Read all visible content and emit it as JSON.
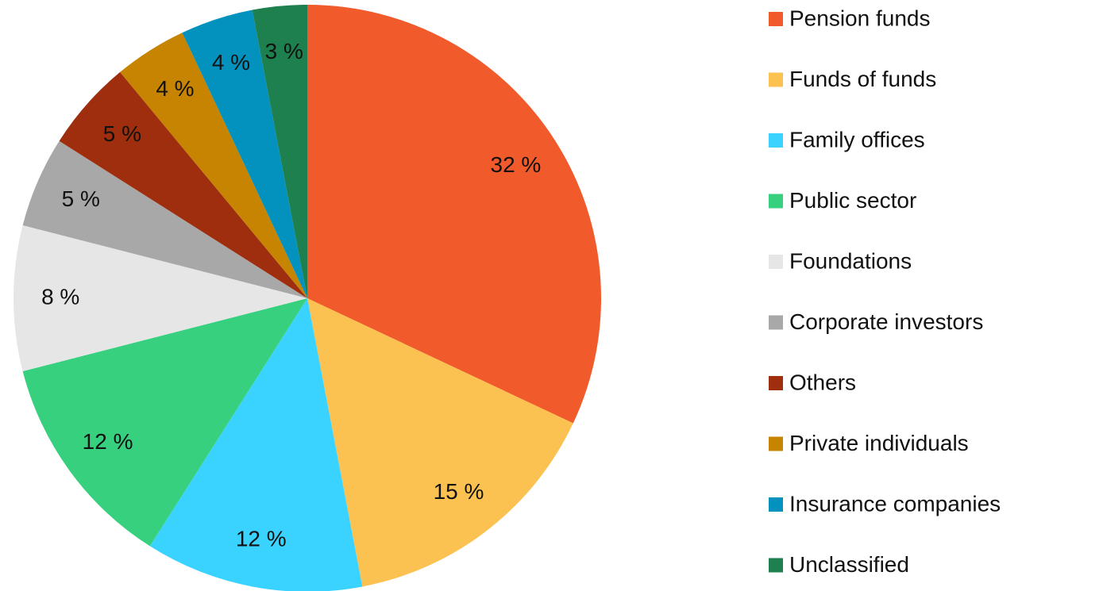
{
  "chart_data": {
    "type": "pie",
    "categories": [
      "Pension funds",
      "Funds of funds",
      "Family offices",
      "Public sector",
      "Foundations",
      "Corporate investors",
      "Others",
      "Private individuals",
      "Insurance companies",
      "Unclassified"
    ],
    "values": [
      32,
      15,
      12,
      12,
      8,
      5,
      5,
      4,
      4,
      3
    ],
    "value_labels": [
      "32 %",
      "15 %",
      "12 %",
      "12 %",
      "8 %",
      "5 %",
      "5 %",
      "4 %",
      "4 %",
      "3 %"
    ],
    "colors": [
      "#f15a2b",
      "#fbc252",
      "#3ad3ff",
      "#36d07f",
      "#e6e6e6",
      "#a8a8a8",
      "#9e2e0e",
      "#c68400",
      "#0392be",
      "#1e7f4f"
    ],
    "legend": "right"
  }
}
